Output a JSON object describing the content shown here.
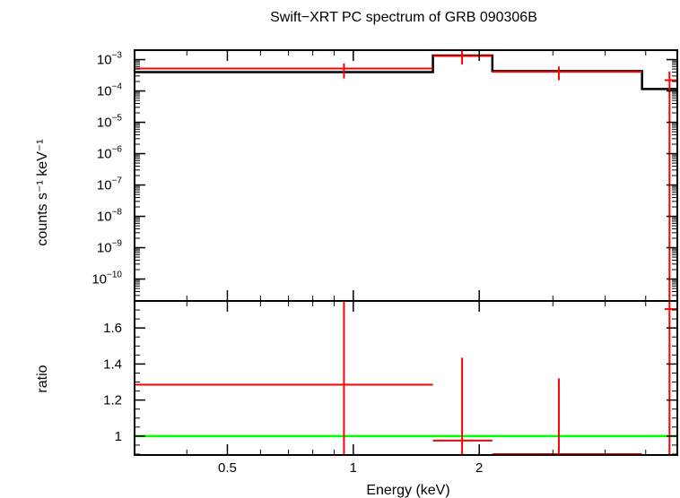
{
  "chart_data": [
    {
      "type": "line",
      "title": "Swift−XRT PC spectrum of GRB 090306B",
      "ylabel": "counts s⁻¹ keV⁻¹",
      "yscale": "log",
      "xscale": "log",
      "xlim": [
        0.3,
        5.95
      ],
      "ylim": [
        2e-11,
        0.002
      ],
      "yticks": [
        {
          "v": 0.001,
          "m": "10",
          "e": "−3"
        },
        {
          "v": 0.0001,
          "m": "10",
          "e": "−4"
        },
        {
          "v": 1e-05,
          "m": "10",
          "e": "−5"
        },
        {
          "v": 1e-06,
          "m": "10",
          "e": "−6"
        },
        {
          "v": 1e-07,
          "m": "10",
          "e": "−7"
        },
        {
          "v": 1e-08,
          "m": "10",
          "e": "−8"
        },
        {
          "v": 1e-09,
          "m": "10",
          "e": "−9"
        },
        {
          "v": 1e-10,
          "m": "10",
          "e": "−10"
        }
      ],
      "data_color": "#ff0000",
      "model_color": "#000000",
      "data": [
        {
          "xlo": 0.3,
          "xhi": 1.55,
          "x": 0.95,
          "y": 0.00052,
          "ylo": 0.00025,
          "yhi": 0.00075
        },
        {
          "xlo": 1.55,
          "xhi": 2.15,
          "x": 1.82,
          "y": 0.0013,
          "ylo": 0.0007,
          "yhi": 0.0021
        },
        {
          "xlo": 2.15,
          "xhi": 4.9,
          "x": 3.1,
          "y": 0.00041,
          "ylo": 0.00022,
          "yhi": 0.0006
        },
        {
          "xlo": 5.55,
          "xhi": 5.95,
          "x": 5.7,
          "y": 0.00022,
          "ylo": 2e-11,
          "yhi": 0.00042
        }
      ],
      "model": [
        {
          "xlo": 0.3,
          "xhi": 1.55,
          "y": 0.0004
        },
        {
          "xlo": 1.55,
          "xhi": 2.15,
          "y": 0.00135
        },
        {
          "xlo": 2.15,
          "xhi": 4.9,
          "y": 0.00043
        },
        {
          "xlo": 4.9,
          "xhi": 5.95,
          "y": 0.000115
        }
      ]
    },
    {
      "type": "line",
      "xlabel": "Energy (keV)",
      "ylabel": "ratio",
      "xscale": "log",
      "xlim": [
        0.3,
        5.95
      ],
      "ylim": [
        0.895,
        1.75
      ],
      "yticks": [
        1,
        1.2,
        1.4,
        1.6
      ],
      "ytick_labels": [
        "1",
        "1.2",
        "1.4",
        "1.6"
      ],
      "xticks": [
        0.5,
        1,
        2
      ],
      "xtick_labels": [
        "0.5",
        "1",
        "2"
      ],
      "reference_line": 1,
      "reference_color": "#00ff00",
      "data": [
        {
          "xlo": 0.3,
          "xhi": 1.55,
          "x": 0.95,
          "y": 1.285,
          "ylo": 0.895,
          "yhi": 1.75
        },
        {
          "xlo": 1.55,
          "xhi": 2.15,
          "x": 1.82,
          "y": 0.975,
          "ylo": 0.895,
          "yhi": 1.435
        },
        {
          "xlo": 2.15,
          "xhi": 4.9,
          "x": 3.1,
          "y": 0.9,
          "ylo": 0.895,
          "yhi": 1.32
        },
        {
          "xlo": 5.55,
          "xhi": 5.95,
          "x": 5.7,
          "y": 1.705,
          "ylo": 0.895,
          "yhi": 1.75
        }
      ]
    }
  ]
}
